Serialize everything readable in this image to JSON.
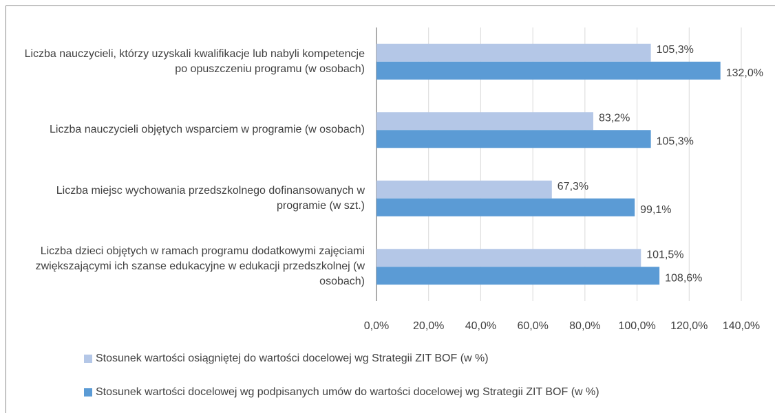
{
  "chart_data": {
    "type": "bar",
    "orientation": "horizontal",
    "categories": [
      "Liczba nauczycieli, którzy uzyskali kwalifikacje lub nabyli kompetencje po opuszczeniu programu (w osobach)",
      "Liczba nauczycieli objętych wsparciem w programie (w osobach)",
      "Liczba miejsc wychowania przedszkolnego dofinansowanych w programie (w szt.)",
      "Liczba dzieci objętych w ramach programu dodatkowymi zajęciami zwiększającymi ich szanse edukacyjne w edukacji przedszkolnej (w osobach)"
    ],
    "series": [
      {
        "name": "Stosunek wartości osiągniętej do wartości docelowej wg Strategii ZIT BOF (w %)",
        "color": "#b4c7e7",
        "values": [
          105.3,
          83.2,
          67.3,
          101.5
        ],
        "value_labels": [
          "105,3%",
          "83,2%",
          "67,3%",
          "101,5%"
        ]
      },
      {
        "name": "Stosunek wartości docelowej wg podpisanych umów do wartości docelowej wg Strategii ZIT BOF (w %)",
        "color": "#5b9bd5",
        "values": [
          132.0,
          105.3,
          99.1,
          108.6
        ],
        "value_labels": [
          "132,0%",
          "105,3%",
          "99,1%",
          "108,6%"
        ]
      }
    ],
    "xlim": [
      0,
      140
    ],
    "xticks": [
      {
        "value": 0,
        "label": "0,0%"
      },
      {
        "value": 20,
        "label": "20,0%"
      },
      {
        "value": 40,
        "label": "40,0%"
      },
      {
        "value": 60,
        "label": "60,0%"
      },
      {
        "value": 80,
        "label": "80,0%"
      },
      {
        "value": 100,
        "label": "100,0%"
      },
      {
        "value": 120,
        "label": "120,0%"
      },
      {
        "value": 140,
        "label": "140,0%"
      }
    ],
    "grid": true,
    "legend": "bottom"
  }
}
